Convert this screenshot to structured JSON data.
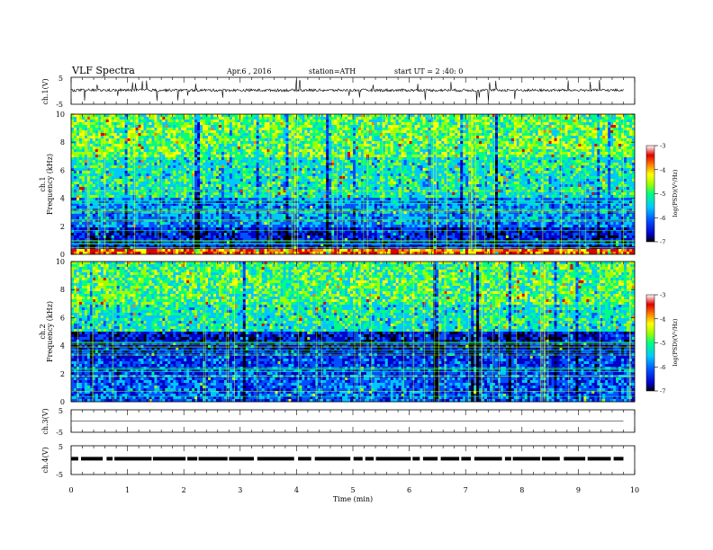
{
  "header": {
    "title": "VLF  Spectra",
    "date": "Apr.6  , 2016",
    "station": "station=ATH",
    "start": "start  UT  =   2 :40: 0"
  },
  "colors": {
    "colormap": [
      "#000000",
      "#0000c8",
      "#0050ff",
      "#00c8ff",
      "#00ff80",
      "#a0ff00",
      "#ffff00",
      "#ff8000",
      "#e00000",
      "#ffffff"
    ],
    "waveform": "#000000",
    "axes": "#000000"
  },
  "chart_data": [
    {
      "type": "line",
      "panel": "ch1-waveform",
      "ylabel": "ch.1(V)",
      "ytick_labels": [
        "5",
        "-5"
      ],
      "ylim": [
        -5,
        5
      ],
      "xlim": [
        0,
        10
      ],
      "approx_level": 0.2,
      "approx_amplitude": 1.0
    },
    {
      "type": "heatmap",
      "panel": "ch1-spectrogram",
      "ylabel": "ch.1\nFrequency  (kHz)",
      "ytick_labels": [
        "10",
        "8",
        "6",
        "4",
        "2",
        "0"
      ],
      "ylim": [
        0,
        10
      ],
      "xlim": [
        0,
        10
      ],
      "colorbar": {
        "label": "log(PSD)(V²/Hz)",
        "tick_labels": [
          "-3",
          "-4",
          "-5",
          "-6",
          "-7"
        ],
        "range": [
          -7,
          -3
        ]
      },
      "approx_levels": [
        {
          "freq_range": [
            0,
            0.3
          ],
          "level": -3.5
        },
        {
          "freq_range": [
            0.3,
            2
          ],
          "level": -6.2
        },
        {
          "freq_range": [
            2,
            4
          ],
          "level": -5.6
        },
        {
          "freq_range": [
            4,
            7
          ],
          "level": -5.0
        },
        {
          "freq_range": [
            7,
            10
          ],
          "level": -4.6
        }
      ]
    },
    {
      "type": "heatmap",
      "panel": "ch2-spectrogram",
      "ylabel": "ch.2\nFrequency  (kHz)",
      "ytick_labels": [
        "10",
        "8",
        "6",
        "4",
        "2",
        "0"
      ],
      "ylim": [
        0,
        10
      ],
      "xlim": [
        0,
        10
      ],
      "colorbar": {
        "label": "log(PSD)(V²/Hz)",
        "tick_labels": [
          "-3",
          "-4",
          "-5",
          "-6",
          "-7"
        ],
        "range": [
          -7,
          -3
        ]
      },
      "approx_levels": [
        {
          "freq_range": [
            0,
            2
          ],
          "level": -5.8
        },
        {
          "freq_range": [
            2,
            3.5
          ],
          "level": -6.0
        },
        {
          "freq_range": [
            3.5,
            5
          ],
          "level": -6.3
        },
        {
          "freq_range": [
            5,
            7
          ],
          "level": -5.0
        },
        {
          "freq_range": [
            7,
            10
          ],
          "level": -4.7
        }
      ]
    },
    {
      "type": "line",
      "panel": "ch3-waveform",
      "ylabel": "ch.3(V)",
      "ytick_labels": [
        "5",
        "-5"
      ],
      "ylim": [
        -5,
        5
      ],
      "xlim": [
        0,
        10
      ],
      "approx_level": 0
    },
    {
      "type": "line",
      "panel": "ch4-waveform",
      "ylabel": "ch.4(V)",
      "ytick_labels": [
        "5",
        "-5"
      ],
      "ylim": [
        -5,
        5
      ],
      "xlim": [
        0,
        10
      ],
      "approx_level": 0.5,
      "approx_amplitude": 0.3
    }
  ],
  "x_axis": {
    "label": "Time  (min)",
    "tick_labels": [
      "0",
      "1",
      "2",
      "3",
      "4",
      "5",
      "6",
      "7",
      "8",
      "9",
      "10"
    ]
  }
}
